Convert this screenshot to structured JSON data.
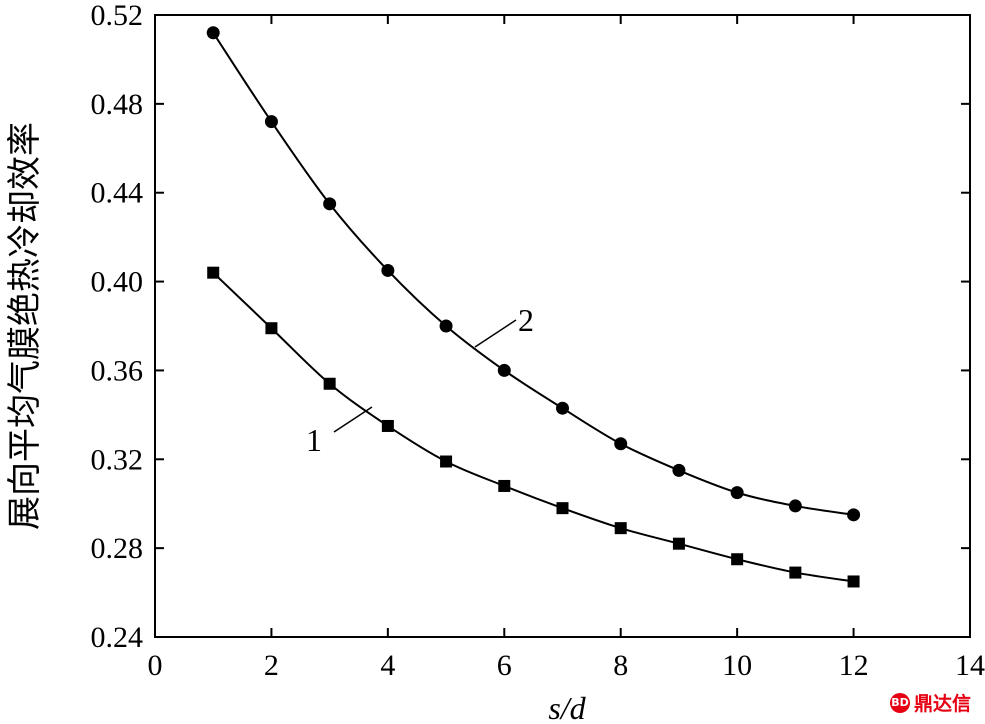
{
  "chart_data": {
    "type": "line",
    "xlabel": "s/d",
    "ylabel": "展向平均气膜绝热冷却效率",
    "xlim": [
      0,
      14
    ],
    "ylim": [
      0.24,
      0.52
    ],
    "xticks": [
      0,
      2,
      4,
      6,
      8,
      10,
      12,
      14
    ],
    "yticks": [
      0.24,
      0.28,
      0.32,
      0.36,
      0.4,
      0.44,
      0.48,
      0.52
    ],
    "xtick_labels": [
      "0",
      "2",
      "4",
      "6",
      "8",
      "10",
      "12",
      "14"
    ],
    "ytick_labels": [
      "0.24",
      "0.28",
      "0.32",
      "0.36",
      "0.40",
      "0.44",
      "0.48",
      "0.52"
    ],
    "grid": false,
    "series": [
      {
        "name": "1",
        "marker": "square",
        "x": [
          1,
          2,
          3,
          4,
          5,
          6,
          7,
          8,
          9,
          10,
          11,
          12
        ],
        "values": [
          0.404,
          0.379,
          0.354,
          0.335,
          0.319,
          0.308,
          0.298,
          0.289,
          0.282,
          0.275,
          0.269,
          0.265
        ]
      },
      {
        "name": "2",
        "marker": "circle",
        "x": [
          1,
          2,
          3,
          4,
          5,
          6,
          7,
          8,
          9,
          10,
          11,
          12
        ],
        "values": [
          0.512,
          0.472,
          0.435,
          0.405,
          0.38,
          0.36,
          0.343,
          0.327,
          0.315,
          0.305,
          0.299,
          0.295
        ]
      }
    ]
  },
  "watermark": {
    "logo_text": "BD",
    "text": "鼎达信"
  }
}
